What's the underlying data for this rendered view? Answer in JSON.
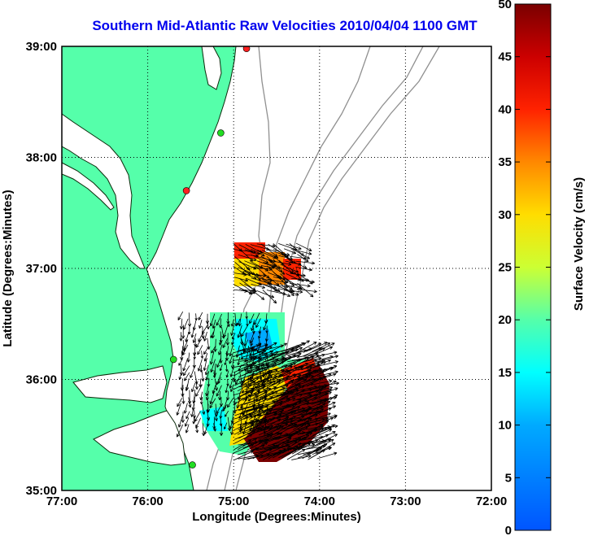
{
  "chart_data": {
    "type": "map-vector-field",
    "title": "Southern Mid-Atlantic Raw Velocities 2010/04/04 1100 GMT",
    "xlabel": "Longitude (Degrees:Minutes)",
    "ylabel": "Latitude (Degrees:Minutes)",
    "xlim": [
      -77,
      -72
    ],
    "ylim": [
      35,
      39
    ],
    "x_ticks": [
      {
        "value": -77,
        "label": "77:00"
      },
      {
        "value": -76,
        "label": "76:00"
      },
      {
        "value": -75,
        "label": "75:00"
      },
      {
        "value": -74,
        "label": "74:00"
      },
      {
        "value": -73,
        "label": "73:00"
      },
      {
        "value": -72,
        "label": "72:00"
      }
    ],
    "y_ticks": [
      {
        "value": 35,
        "label": "35:00"
      },
      {
        "value": 36,
        "label": "36:00"
      },
      {
        "value": 37,
        "label": "37:00"
      },
      {
        "value": 38,
        "label": "38:00"
      },
      {
        "value": 39,
        "label": "39:00"
      }
    ],
    "grid": true,
    "colorbar": {
      "label": "Surface Velocity (cm/s)",
      "range": [
        0,
        50
      ],
      "ticks": [
        0,
        5,
        10,
        15,
        20,
        25,
        30,
        35,
        40,
        45,
        50
      ],
      "colormap": "jet"
    },
    "land_color": "#55ffaa",
    "stations": [
      {
        "lon": -74.85,
        "lat": 38.98,
        "color": "#ff2020"
      },
      {
        "lon": -75.15,
        "lat": 38.22,
        "color": "#22dd22"
      },
      {
        "lon": -75.55,
        "lat": 37.7,
        "color": "#ff2020"
      },
      {
        "lon": -75.7,
        "lat": 36.18,
        "color": "#22dd22"
      },
      {
        "lon": -75.48,
        "lat": 35.23,
        "color": "#22dd22"
      }
    ],
    "regions": [
      {
        "name": "",
        "lon_range": [
          -75.0,
          -74.25
        ],
        "lat_range": [
          36.78,
          37.22
        ],
        "speed_cm_s": [
          20,
          45
        ]
      },
      {
        "name": "",
        "lon_range": [
          -75.6,
          -74.6
        ],
        "lat_range": [
          35.6,
          36.6
        ],
        "speed_cm_s": [
          5,
          25
        ]
      },
      {
        "name": "",
        "lon_range": [
          -75.0,
          -74.0
        ],
        "lat_range": [
          35.25,
          36.25
        ],
        "speed_cm_s": [
          40,
          50
        ]
      }
    ]
  }
}
